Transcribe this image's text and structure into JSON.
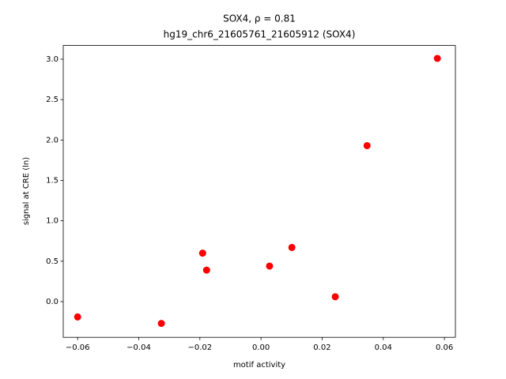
{
  "chart_data": {
    "type": "scatter",
    "title": "SOX4, ρ = 0.81",
    "subtitle": "hg19_chr6_21605761_21605912 (SOX4)",
    "x_label": "motif activity",
    "y_label": "signal at CRE (ln)",
    "color": "#ff0000",
    "x": [
      -0.06,
      -0.0326,
      -0.0191,
      -0.0178,
      0.0028,
      0.0101,
      0.0243,
      0.0347,
      0.0577
    ],
    "y": [
      -0.19,
      -0.27,
      0.6,
      0.39,
      0.44,
      0.67,
      0.06,
      1.93,
      3.01
    ],
    "xlim": [
      -0.0647,
      0.0636
    ],
    "ylim": [
      -0.442,
      3.17
    ],
    "xticks": [
      {
        "value": -0.06,
        "label": "−0.06"
      },
      {
        "value": -0.04,
        "label": "−0.04"
      },
      {
        "value": -0.02,
        "label": "−0.02"
      },
      {
        "value": 0,
        "label": "0.00"
      },
      0.02,
      0.04,
      0.06
    ],
    "yticks": [
      {
        "value": 0,
        "label": "0.0"
      },
      0.5,
      {
        "value": 1,
        "label": "1.0"
      },
      1.5,
      {
        "value": 2,
        "label": "2.0"
      },
      2.5,
      {
        "value": 3,
        "label": "3.0"
      }
    ]
  }
}
